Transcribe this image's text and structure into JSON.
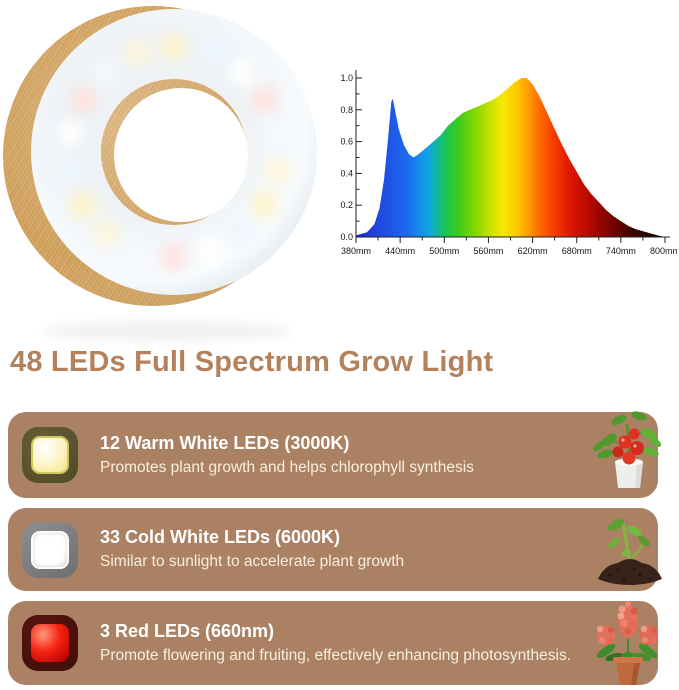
{
  "title": {
    "text": "48 LEDs Full Spectrum Grow Light",
    "color": "#b3825d"
  },
  "images": {
    "ring_light": "wooden-ring-grow-light-photo",
    "card_plants": [
      "tomato-plant-image",
      "seedling-in-soil-image",
      "flowering-plant-in-pot-image"
    ]
  },
  "colors": {
    "background": "#ffffff",
    "headline": "#b3825d",
    "card_background": "#ab8164",
    "card_title_text": "#ffffff",
    "card_body_text": "#f6efdd",
    "wood_frame": "#d8ab69",
    "warm_led": "#fdf4c4",
    "cold_led": "#ffffff",
    "red_led": "#f52312"
  },
  "chart_data": {
    "type": "area",
    "title": "",
    "xlabel": "",
    "ylabel": "",
    "x_unit_suffix": "mm",
    "xlim": [
      380,
      800
    ],
    "ylim": [
      0,
      1.0
    ],
    "x_ticks": [
      380,
      440,
      500,
      560,
      620,
      680,
      740,
      800
    ],
    "x_tick_labels": [
      "380mm",
      "440mm",
      "500mm",
      "560mm",
      "620mm",
      "680mm",
      "740mm",
      "800mm"
    ],
    "x_minor_step": 30,
    "y_ticks": [
      0.0,
      0.2,
      0.4,
      0.6,
      0.8,
      1.0
    ],
    "y_minor_step": 0.1,
    "grid": false,
    "legend": false,
    "points": [
      [
        380,
        0.01
      ],
      [
        395,
        0.03
      ],
      [
        405,
        0.08
      ],
      [
        412,
        0.18
      ],
      [
        418,
        0.36
      ],
      [
        424,
        0.64
      ],
      [
        428,
        0.85
      ],
      [
        430,
        0.87
      ],
      [
        433,
        0.8
      ],
      [
        438,
        0.68
      ],
      [
        445,
        0.58
      ],
      [
        452,
        0.52
      ],
      [
        458,
        0.5
      ],
      [
        465,
        0.52
      ],
      [
        475,
        0.56
      ],
      [
        485,
        0.6
      ],
      [
        495,
        0.64
      ],
      [
        505,
        0.7
      ],
      [
        515,
        0.74
      ],
      [
        525,
        0.78
      ],
      [
        535,
        0.8
      ],
      [
        545,
        0.82
      ],
      [
        555,
        0.84
      ],
      [
        565,
        0.86
      ],
      [
        575,
        0.89
      ],
      [
        585,
        0.93
      ],
      [
        595,
        0.97
      ],
      [
        605,
        1.0
      ],
      [
        612,
        1.0
      ],
      [
        620,
        0.96
      ],
      [
        630,
        0.88
      ],
      [
        640,
        0.78
      ],
      [
        650,
        0.68
      ],
      [
        660,
        0.58
      ],
      [
        670,
        0.49
      ],
      [
        680,
        0.41
      ],
      [
        690,
        0.33
      ],
      [
        700,
        0.27
      ],
      [
        710,
        0.22
      ],
      [
        720,
        0.17
      ],
      [
        730,
        0.13
      ],
      [
        740,
        0.1
      ],
      [
        750,
        0.07
      ],
      [
        760,
        0.05
      ],
      [
        775,
        0.03
      ],
      [
        790,
        0.01
      ],
      [
        800,
        0.0
      ]
    ],
    "spectrum_gradient": [
      {
        "nm": 380,
        "color": "#2126cc"
      },
      {
        "nm": 420,
        "color": "#204fe6"
      },
      {
        "nm": 450,
        "color": "#1a6cf0"
      },
      {
        "nm": 480,
        "color": "#0fa7e0"
      },
      {
        "nm": 500,
        "color": "#18c25a"
      },
      {
        "nm": 520,
        "color": "#3ecc1a"
      },
      {
        "nm": 545,
        "color": "#8ed800"
      },
      {
        "nm": 565,
        "color": "#cfe400"
      },
      {
        "nm": 580,
        "color": "#f5e800"
      },
      {
        "nm": 600,
        "color": "#ffc400"
      },
      {
        "nm": 615,
        "color": "#ff9800"
      },
      {
        "nm": 630,
        "color": "#ff6a00"
      },
      {
        "nm": 650,
        "color": "#f53b00"
      },
      {
        "nm": 670,
        "color": "#e01800"
      },
      {
        "nm": 700,
        "color": "#b00800"
      },
      {
        "nm": 730,
        "color": "#700400"
      },
      {
        "nm": 760,
        "color": "#380200"
      },
      {
        "nm": 800,
        "color": "#0d0101"
      }
    ]
  },
  "cards": [
    {
      "icon": "warm-white-led-icon",
      "title": "12 Warm White LEDs (3000K)",
      "description": "Promotes plant growth and helps chlorophyll synthesis",
      "plant": "tomato-plant-image"
    },
    {
      "icon": "cold-white-led-icon",
      "title": "33 Cold White LEDs (6000K)",
      "description": "Similar to sunlight to accelerate plant growth",
      "plant": "seedling-in-soil-image"
    },
    {
      "icon": "red-led-icon",
      "title": "3 Red LEDs (660nm)",
      "description": "Promote flowering and fruiting, effectively enhancing photosynthesis.",
      "plant": "flowering-plant-in-pot-image"
    }
  ]
}
